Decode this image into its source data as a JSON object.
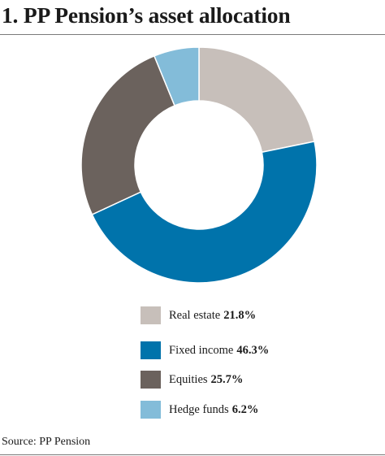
{
  "chart_data": {
    "type": "pie",
    "title": "1. PP Pension’s asset allocation",
    "slices": [
      {
        "label": "Real estate",
        "value": 21.8,
        "display": "21.8%",
        "color": "#c7bfba"
      },
      {
        "label": "Fixed income",
        "value": 46.3,
        "display": "46.3%",
        "color": "#0073ab"
      },
      {
        "label": "Equities",
        "value": 25.7,
        "display": "25.7%",
        "color": "#6b625d"
      },
      {
        "label": "Hedge funds",
        "value": 6.2,
        "display": "6.2%",
        "color": "#83bcd9"
      }
    ],
    "start_angle_deg": 0,
    "direction": "clockwise",
    "donut": true,
    "legend_position": "bottom"
  },
  "source": "Source: PP Pension"
}
